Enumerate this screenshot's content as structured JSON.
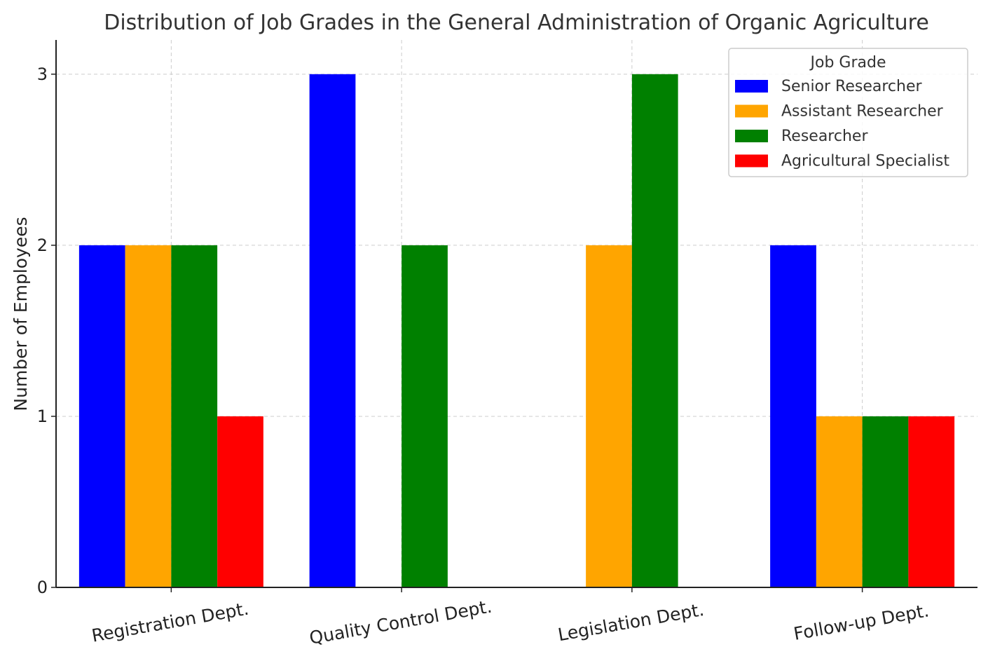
{
  "chart_data": {
    "type": "bar",
    "title": "Distribution of Job Grades in the General Administration of Organic Agriculture",
    "xlabel": "",
    "ylabel": "Number of Employees",
    "ylim": [
      0,
      3.2
    ],
    "yticks": [
      0,
      1,
      2,
      3
    ],
    "grid": true,
    "categories": [
      "Registration Dept.",
      "Quality Control Dept.",
      "Legislation Dept.",
      "Follow-up Dept."
    ],
    "legend": {
      "title": "Job Grade",
      "placement": "top-right"
    },
    "series": [
      {
        "name": "Senior Researcher",
        "color": "#0000ff",
        "values": [
          2,
          3,
          0,
          2
        ]
      },
      {
        "name": "Assistant Researcher",
        "color": "#ffa500",
        "values": [
          2,
          0,
          2,
          1
        ]
      },
      {
        "name": "Researcher",
        "color": "#008000",
        "values": [
          2,
          2,
          3,
          1
        ]
      },
      {
        "name": "Agricultural Specialist",
        "color": "#ff0000",
        "values": [
          1,
          0,
          0,
          1
        ]
      }
    ]
  }
}
